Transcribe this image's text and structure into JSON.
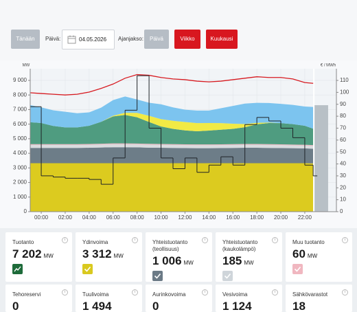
{
  "controls": {
    "today": "Tänään",
    "day_label": "Päivä:",
    "date": "04.05.2026",
    "period_label": "Ajanjakso:",
    "period_day": "Päivä",
    "period_week": "Viikko",
    "period_month": "Kuukausi"
  },
  "chart_data": {
    "type": "area",
    "stacked": true,
    "y_label": "MW",
    "y2_label": "€ / MWh",
    "x": [
      -0.9,
      0,
      1,
      2,
      3,
      4,
      5,
      6,
      7,
      8,
      9,
      10,
      11,
      12,
      13,
      14,
      15,
      16,
      17,
      18,
      19,
      20,
      21,
      22,
      22.7
    ],
    "xlim": [
      -0.92,
      24.64
    ],
    "xticks": [
      {
        "value": 0,
        "label": "00:00"
      },
      {
        "value": 2,
        "label": "02:00"
      },
      {
        "value": 4,
        "label": "04:00"
      },
      {
        "value": 6,
        "label": "06:00"
      },
      {
        "value": 8,
        "label": "08:00"
      },
      {
        "value": 10,
        "label": "10:00"
      },
      {
        "value": 12,
        "label": "12:00"
      },
      {
        "value": 14,
        "label": "14:00"
      },
      {
        "value": 16,
        "label": "16:00"
      },
      {
        "value": 18,
        "label": "18:00"
      },
      {
        "value": 20,
        "label": "20:00"
      },
      {
        "value": 22,
        "label": "22:00"
      }
    ],
    "ylim": [
      0,
      9800
    ],
    "yticks": [
      {
        "value": 0,
        "label": "0"
      },
      {
        "value": 1000,
        "label": "1 000"
      },
      {
        "value": 2000,
        "label": "2 000"
      },
      {
        "value": 3000,
        "label": "3 000"
      },
      {
        "value": 4000,
        "label": "4 000"
      },
      {
        "value": 5000,
        "label": "5 000"
      },
      {
        "value": 6000,
        "label": "6 000"
      },
      {
        "value": 7000,
        "label": "7 000"
      },
      {
        "value": 8000,
        "label": "8 000"
      },
      {
        "value": 9000,
        "label": "9 000"
      }
    ],
    "y2lim": [
      0,
      119.8
    ],
    "y2ticks": [
      0,
      10,
      20,
      30,
      40,
      50,
      60,
      70,
      80,
      90,
      100,
      110
    ],
    "grid": true,
    "series": [
      {
        "type": "area",
        "color": "#dccb1f",
        "values": [
          3320,
          3320,
          3320,
          3320,
          3320,
          3320,
          3320,
          3320,
          3320,
          3320,
          3320,
          3320,
          3320,
          3320,
          3320,
          3320,
          3320,
          3320,
          3320,
          3320,
          3320,
          3320,
          3320,
          3320,
          3312
        ]
      },
      {
        "type": "area",
        "color": "#6d7d88",
        "values": [
          1050,
          1050,
          1050,
          1050,
          1050,
          1060,
          1080,
          1100,
          1100,
          1090,
          1070,
          1060,
          1050,
          1040,
          1030,
          1030,
          1040,
          1050,
          1060,
          1060,
          1050,
          1040,
          1030,
          1020,
          1006
        ]
      },
      {
        "type": "area",
        "color": "#d9dcdf",
        "values": [
          200,
          200,
          200,
          200,
          200,
          200,
          200,
          200,
          200,
          200,
          200,
          200,
          200,
          200,
          200,
          200,
          200,
          200,
          200,
          200,
          200,
          200,
          190,
          190,
          185
        ]
      },
      {
        "type": "area",
        "color": "#e7b9c2",
        "values": [
          60,
          60,
          60,
          60,
          60,
          60,
          60,
          60,
          60,
          60,
          60,
          60,
          60,
          60,
          60,
          60,
          60,
          60,
          60,
          60,
          60,
          60,
          60,
          60,
          60
        ]
      },
      {
        "type": "area",
        "color": "#4f9c80",
        "values": [
          1500,
          1450,
          1250,
          1150,
          1150,
          1250,
          1500,
          1850,
          1950,
          1800,
          1500,
          1200,
          1050,
          950,
          900,
          950,
          1000,
          1050,
          1150,
          1350,
          1450,
          1450,
          1400,
          1300,
          1124
        ]
      },
      {
        "type": "area",
        "color": "#f1ea45",
        "values": [
          0,
          0,
          0,
          0,
          0,
          0,
          0,
          50,
          150,
          300,
          420,
          500,
          550,
          580,
          560,
          520,
          450,
          350,
          220,
          100,
          30,
          0,
          0,
          0,
          0
        ]
      },
      {
        "type": "area",
        "color": "#7cc4ef",
        "values": [
          1170,
          1070,
          1070,
          1070,
          970,
          920,
          970,
          1070,
          1120,
          920,
          900,
          1020,
          920,
          840,
          860,
          850,
          1020,
          1220,
          1400,
          1370,
          1340,
          1320,
          1320,
          1320,
          1494
        ]
      },
      {
        "type": "line",
        "color": "#d7191f",
        "values": [
          8150,
          8100,
          8050,
          8000,
          8050,
          8200,
          8450,
          8750,
          9150,
          9400,
          9350,
          9200,
          9100,
          9050,
          8950,
          8900,
          8950,
          9050,
          9150,
          9250,
          9200,
          9200,
          9100,
          8850,
          8800
        ]
      },
      {
        "type": "line",
        "axis": "y2",
        "step": true,
        "color": "#1f2327",
        "values": [
          88,
          30,
          29,
          28,
          28,
          27,
          23,
          45,
          85,
          114,
          70,
          45,
          36,
          45,
          33,
          39,
          46,
          39,
          73,
          79,
          76,
          70,
          62,
          39,
          30
        ]
      }
    ],
    "forecast": {
      "x": [
        22.8,
        23.95
      ],
      "value": 7300,
      "color": "#b8c0c6"
    }
  },
  "cards": [
    {
      "title": "Tuotanto",
      "value": "7 202",
      "unit": "MW",
      "color": "#1e6b3a"
    },
    {
      "title": "Ydinvoima",
      "value": "3 312",
      "unit": "MW",
      "color": "#d9c91f"
    },
    {
      "title": "Yhteistuotanto (teollisuus)",
      "value": "1 006",
      "unit": "MW",
      "color": "#6b7a86"
    },
    {
      "title": "Yhteistuotanto (kaukolämpö)",
      "value": "185",
      "unit": "MW",
      "color": "#cfd5da"
    },
    {
      "title": "Muu tuotanto",
      "value": "60",
      "unit": "MW",
      "color": "#f0b7c0"
    },
    {
      "title": "Tehoreservi",
      "value": "0"
    },
    {
      "title": "Tuulivoima",
      "value": "1 494"
    },
    {
      "title": "Aurinkovoima",
      "value": "0"
    },
    {
      "title": "Vesivoima",
      "value": "1 124"
    },
    {
      "title": "Sähkövarastot",
      "value": "18"
    }
  ]
}
